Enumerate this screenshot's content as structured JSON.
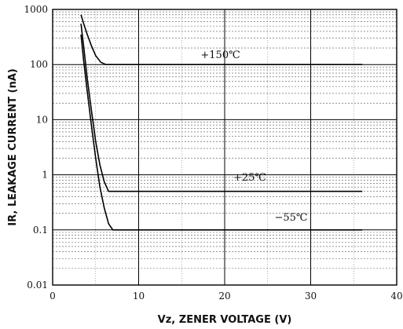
{
  "chart_data": {
    "type": "line",
    "xlabel": "Vz, ZENER VOLTAGE (V)",
    "ylabel": "IR, LEAKAGE CURRENT (nA)",
    "xlim": [
      0,
      40
    ],
    "ylim": [
      0.01,
      1000
    ],
    "yscale": "log",
    "grid": true,
    "x_ticks": [
      "0",
      "10",
      "20",
      "30",
      "40"
    ],
    "y_ticks": [
      "1000",
      "100",
      "10",
      "1",
      "0.1",
      "0.01"
    ],
    "series": [
      {
        "name": "+150℃",
        "color": "#000000",
        "x": [
          3.3,
          3.6,
          4.0,
          4.5,
          5.0,
          5.6,
          6.2,
          36
        ],
        "y": [
          800,
          560,
          360,
          220,
          145,
          110,
          100,
          100
        ]
      },
      {
        "name": "+25℃",
        "color": "#000000",
        "x": [
          3.3,
          3.6,
          4.0,
          4.5,
          5.0,
          5.5,
          6.0,
          6.5,
          36
        ],
        "y": [
          550,
          220,
          60,
          15,
          4,
          1.5,
          0.75,
          0.5,
          0.5
        ]
      },
      {
        "name": "−55℃",
        "color": "#000000",
        "x": [
          3.3,
          3.6,
          4.0,
          4.5,
          5.0,
          5.5,
          6.0,
          6.5,
          7.0,
          36
        ],
        "y": [
          350,
          120,
          35,
          8,
          2,
          0.6,
          0.25,
          0.13,
          0.1,
          0.1
        ]
      }
    ]
  }
}
